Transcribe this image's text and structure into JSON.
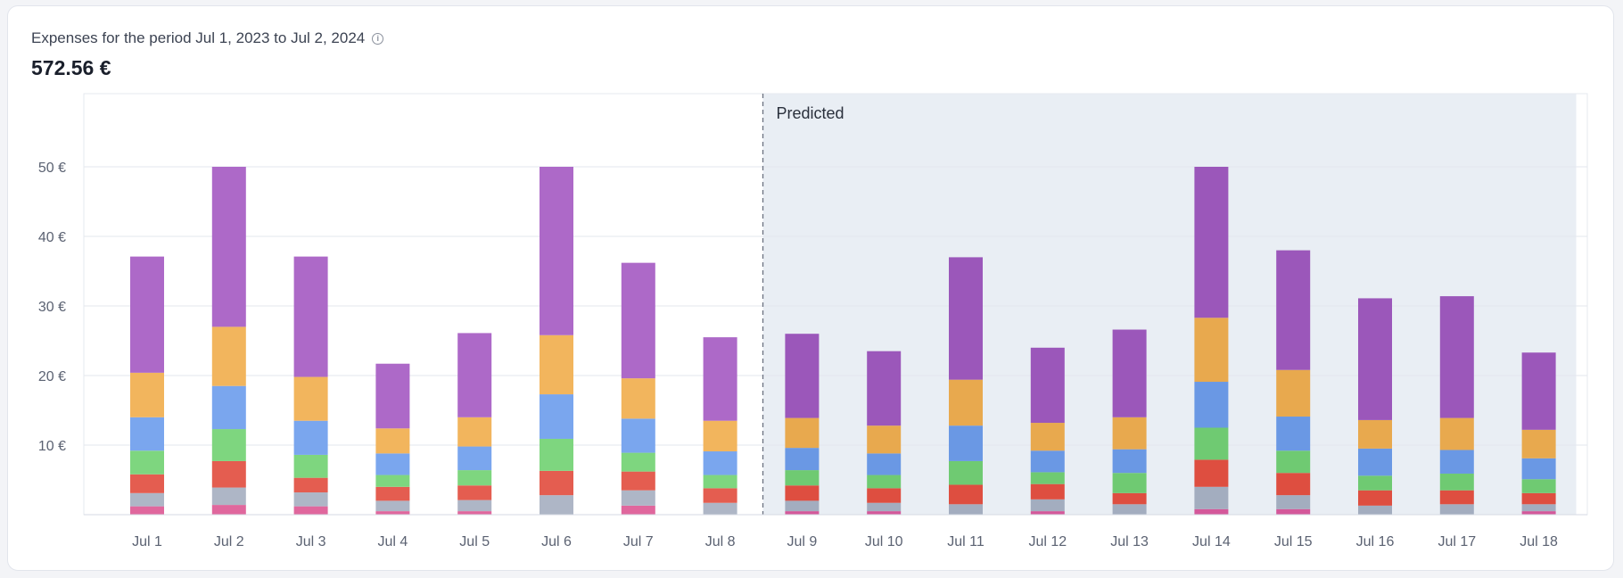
{
  "header": {
    "subtitle": "Expenses for the period Jul 1, 2023 to Jul 2, 2024",
    "total": "572.56 €"
  },
  "chart_data": {
    "type": "bar",
    "stacked": true,
    "categories": [
      "Jul 1",
      "Jul 2",
      "Jul 3",
      "Jul 4",
      "Jul 5",
      "Jul 6",
      "Jul 7",
      "Jul 8",
      "Jul 9",
      "Jul 10",
      "Jul 11",
      "Jul 12",
      "Jul 13",
      "Jul 14",
      "Jul 15",
      "Jul 16",
      "Jul 17",
      "Jul 18"
    ],
    "ylim": [
      0,
      60
    ],
    "yticks": [
      10,
      20,
      30,
      40,
      50
    ],
    "ytick_labels": [
      "10 €",
      "20 €",
      "30 €",
      "40 €",
      "50 €"
    ],
    "grid": true,
    "predicted_label": "Predicted",
    "predicted_from": "Jul 9",
    "colors": [
      "#e0679d",
      "#aeb6c6",
      "#e45d50",
      "#7ed67f",
      "#7aa6ee",
      "#f2b55d",
      "#ad69c8"
    ],
    "predicted_colors": [
      "#d4589a",
      "#a3adbf",
      "#de4e40",
      "#6fca72",
      "#6a98e4",
      "#e8a94e",
      "#9b57ba"
    ],
    "series": [
      {
        "values": [
          1.2,
          1.4,
          1.2,
          0.5,
          0.5,
          0.0,
          1.3,
          0.0,
          0.5,
          0.5,
          0.0,
          0.5,
          0.0,
          0.8,
          0.8,
          0.0,
          0.0,
          0.5
        ]
      },
      {
        "values": [
          1.9,
          2.5,
          2.0,
          1.5,
          1.6,
          2.8,
          2.2,
          1.7,
          1.5,
          1.2,
          1.5,
          1.7,
          1.5,
          3.2,
          2.0,
          1.3,
          1.5,
          1.0
        ]
      },
      {
        "values": [
          2.7,
          3.8,
          2.1,
          2.0,
          2.1,
          3.5,
          2.7,
          2.1,
          2.2,
          2.1,
          2.8,
          2.2,
          1.6,
          3.9,
          3.2,
          2.2,
          2.0,
          1.6
        ]
      },
      {
        "values": [
          3.4,
          4.6,
          3.3,
          1.7,
          2.2,
          4.6,
          2.7,
          1.9,
          2.2,
          1.9,
          3.4,
          1.7,
          2.9,
          4.6,
          3.2,
          2.1,
          2.4,
          2.0
        ]
      },
      {
        "values": [
          4.8,
          6.2,
          4.9,
          3.1,
          3.4,
          6.4,
          4.9,
          3.4,
          3.2,
          3.1,
          5.1,
          3.1,
          3.4,
          6.6,
          4.9,
          3.9,
          3.4,
          3.0
        ]
      },
      {
        "values": [
          6.4,
          8.5,
          6.3,
          3.6,
          4.2,
          8.5,
          5.8,
          4.4,
          4.3,
          4.0,
          6.6,
          4.0,
          4.6,
          9.2,
          6.7,
          4.1,
          4.6,
          4.1
        ]
      },
      {
        "values": [
          16.7,
          23.0,
          17.3,
          9.3,
          12.1,
          24.2,
          16.6,
          12.0,
          12.1,
          10.7,
          17.6,
          10.8,
          12.6,
          21.7,
          17.2,
          17.5,
          17.5,
          11.1
        ]
      }
    ]
  }
}
